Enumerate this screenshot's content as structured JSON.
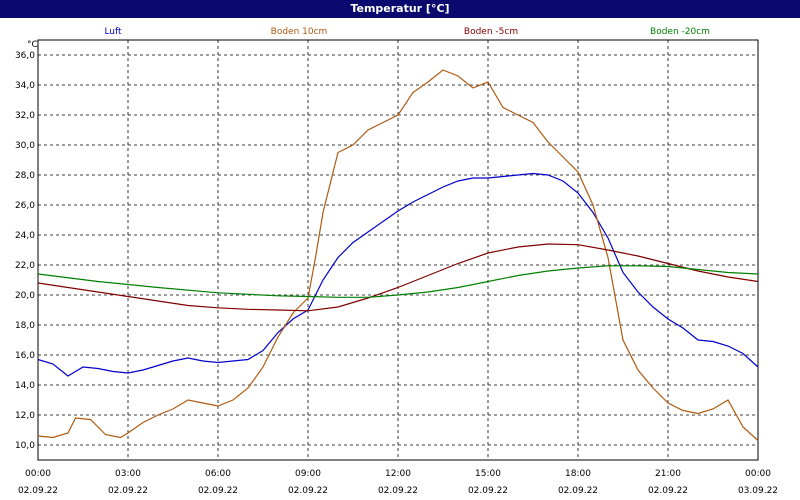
{
  "window": {
    "title": "Temperatur [°C]"
  },
  "chart_data": {
    "type": "line",
    "title": "Temperatur [°C]",
    "ylabel": "°C",
    "ylim": [
      9,
      37
    ],
    "xlim": [
      0,
      24
    ],
    "grid": true,
    "legend_position": "top",
    "y_ticks": [
      "10,0",
      "12,0",
      "14,0",
      "16,0",
      "18,0",
      "20,0",
      "22,0",
      "24,0",
      "26,0",
      "28,0",
      "30,0",
      "32,0",
      "34,0",
      "36,0"
    ],
    "x_ticks": [
      {
        "time": "00:00",
        "date": "02.09.22"
      },
      {
        "time": "03:00",
        "date": "02.09.22"
      },
      {
        "time": "06:00",
        "date": "02.09.22"
      },
      {
        "time": "09:00",
        "date": "02.09.22"
      },
      {
        "time": "12:00",
        "date": "02.09.22"
      },
      {
        "time": "15:00",
        "date": "02.09.22"
      },
      {
        "time": "18:00",
        "date": "02.09.22"
      },
      {
        "time": "21:00",
        "date": "02.09.22"
      },
      {
        "time": "00:00",
        "date": "03.09.22"
      }
    ],
    "series": [
      {
        "name": "Luft",
        "color": "#0000cc",
        "points": [
          [
            0,
            15.7
          ],
          [
            0.5,
            15.4
          ],
          [
            1,
            14.6
          ],
          [
            1.5,
            15.2
          ],
          [
            2,
            15.1
          ],
          [
            2.5,
            14.9
          ],
          [
            3,
            14.8
          ],
          [
            3.5,
            15.0
          ],
          [
            4,
            15.3
          ],
          [
            4.5,
            15.6
          ],
          [
            5,
            15.8
          ],
          [
            5.5,
            15.6
          ],
          [
            6,
            15.5
          ],
          [
            6.5,
            15.6
          ],
          [
            7,
            15.7
          ],
          [
            7.5,
            16.3
          ],
          [
            8,
            17.5
          ],
          [
            8.5,
            18.4
          ],
          [
            9,
            19.0
          ],
          [
            9.5,
            21.0
          ],
          [
            10,
            22.5
          ],
          [
            10.5,
            23.5
          ],
          [
            11,
            24.2
          ],
          [
            11.5,
            24.9
          ],
          [
            12,
            25.6
          ],
          [
            12.5,
            26.2
          ],
          [
            13,
            26.7
          ],
          [
            13.5,
            27.2
          ],
          [
            14,
            27.6
          ],
          [
            14.5,
            27.8
          ],
          [
            15,
            27.8
          ],
          [
            15.5,
            27.9
          ],
          [
            16,
            28.0
          ],
          [
            16.5,
            28.1
          ],
          [
            17,
            28.0
          ],
          [
            17.5,
            27.6
          ],
          [
            18,
            26.8
          ],
          [
            18.5,
            25.5
          ],
          [
            19,
            23.8
          ],
          [
            19.5,
            21.5
          ],
          [
            20,
            20.2
          ],
          [
            20.5,
            19.2
          ],
          [
            21,
            18.4
          ],
          [
            21.5,
            17.8
          ],
          [
            22,
            17.0
          ],
          [
            22.5,
            16.9
          ],
          [
            23,
            16.6
          ],
          [
            23.5,
            16.1
          ],
          [
            24,
            15.2
          ]
        ]
      },
      {
        "name": "Boden 10cm",
        "color": "#b05a10",
        "points": [
          [
            0,
            10.6
          ],
          [
            0.5,
            10.5
          ],
          [
            1,
            10.8
          ],
          [
            1.25,
            11.8
          ],
          [
            1.75,
            11.7
          ],
          [
            2.25,
            10.7
          ],
          [
            2.75,
            10.5
          ],
          [
            3,
            10.8
          ],
          [
            3.5,
            11.5
          ],
          [
            4,
            12.0
          ],
          [
            4.5,
            12.4
          ],
          [
            5,
            13.0
          ],
          [
            5.5,
            12.8
          ],
          [
            6,
            12.6
          ],
          [
            6.5,
            13.0
          ],
          [
            7,
            13.8
          ],
          [
            7.5,
            15.2
          ],
          [
            8,
            17.2
          ],
          [
            8.5,
            18.8
          ],
          [
            9,
            19.8
          ],
          [
            9.25,
            22.5
          ],
          [
            9.5,
            25.5
          ],
          [
            9.75,
            27.5
          ],
          [
            10,
            29.5
          ],
          [
            10.5,
            30.0
          ],
          [
            11,
            31.0
          ],
          [
            11.5,
            31.5
          ],
          [
            12,
            32.0
          ],
          [
            12.5,
            33.5
          ],
          [
            13,
            34.2
          ],
          [
            13.5,
            35.0
          ],
          [
            14,
            34.6
          ],
          [
            14.5,
            33.8
          ],
          [
            15,
            34.2
          ],
          [
            15.5,
            32.5
          ],
          [
            16,
            32.0
          ],
          [
            16.5,
            31.5
          ],
          [
            17,
            30.2
          ],
          [
            17.5,
            29.2
          ],
          [
            18,
            28.2
          ],
          [
            18.5,
            26.0
          ],
          [
            19,
            22.5
          ],
          [
            19.5,
            17.0
          ],
          [
            20,
            15.0
          ],
          [
            20.5,
            13.8
          ],
          [
            21,
            12.8
          ],
          [
            21.5,
            12.3
          ],
          [
            22,
            12.1
          ],
          [
            22.5,
            12.4
          ],
          [
            23,
            13.0
          ],
          [
            23.5,
            11.2
          ],
          [
            24,
            10.3
          ]
        ]
      },
      {
        "name": "Boden -5cm",
        "color": "#800000",
        "points": [
          [
            0,
            20.8
          ],
          [
            1,
            20.5
          ],
          [
            2,
            20.2
          ],
          [
            3,
            19.9
          ],
          [
            4,
            19.6
          ],
          [
            5,
            19.3
          ],
          [
            6,
            19.15
          ],
          [
            7,
            19.05
          ],
          [
            8,
            19.0
          ],
          [
            9,
            18.95
          ],
          [
            10,
            19.2
          ],
          [
            11,
            19.8
          ],
          [
            12,
            20.5
          ],
          [
            13,
            21.3
          ],
          [
            14,
            22.1
          ],
          [
            15,
            22.8
          ],
          [
            16,
            23.2
          ],
          [
            17,
            23.4
          ],
          [
            18,
            23.35
          ],
          [
            19,
            23.0
          ],
          [
            20,
            22.6
          ],
          [
            21,
            22.1
          ],
          [
            22,
            21.6
          ],
          [
            23,
            21.2
          ],
          [
            24,
            20.9
          ]
        ]
      },
      {
        "name": "Boden -20cm",
        "color": "#008000",
        "points": [
          [
            0,
            21.4
          ],
          [
            2,
            20.9
          ],
          [
            4,
            20.5
          ],
          [
            6,
            20.15
          ],
          [
            8,
            19.95
          ],
          [
            9,
            19.9
          ],
          [
            10,
            19.85
          ],
          [
            11,
            19.85
          ],
          [
            12,
            20.0
          ],
          [
            13,
            20.2
          ],
          [
            14,
            20.5
          ],
          [
            15,
            20.9
          ],
          [
            16,
            21.3
          ],
          [
            17,
            21.6
          ],
          [
            18,
            21.8
          ],
          [
            19,
            21.95
          ],
          [
            20,
            21.95
          ],
          [
            21,
            21.9
          ],
          [
            22,
            21.7
          ],
          [
            23,
            21.5
          ],
          [
            24,
            21.4
          ]
        ]
      }
    ]
  }
}
